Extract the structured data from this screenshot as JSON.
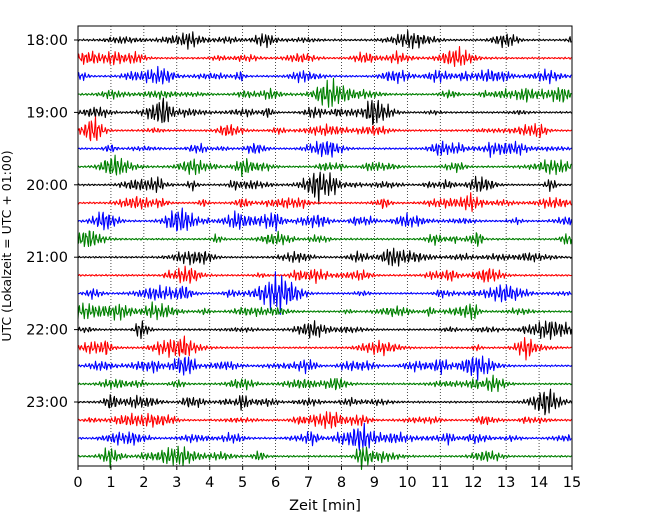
{
  "chart_data": {
    "type": "line",
    "xlabel": "Zeit  [min]",
    "ylabel": "UTC (Lokalzeit = UTC + 01:00)",
    "xlim": [
      0,
      15
    ],
    "x_ticks": [
      "0",
      "1",
      "2",
      "3",
      "4",
      "5",
      "6",
      "7",
      "8",
      "9",
      "10",
      "11",
      "12",
      "13",
      "14",
      "15"
    ],
    "y_ticks": [
      {
        "label": "18:00",
        "trace": 0
      },
      {
        "label": "19:00",
        "trace": 4
      },
      {
        "label": "20:00",
        "trace": 8
      },
      {
        "label": "21:00",
        "trace": 12
      },
      {
        "label": "22:00",
        "trace": 16
      },
      {
        "label": "23:00",
        "trace": 20
      }
    ],
    "trace_minutes": 15,
    "trace_count": 24,
    "grid": "x-dotted",
    "trace_colors": [
      "#000000",
      "#ff0000",
      "#0000ff",
      "#008000"
    ]
  }
}
